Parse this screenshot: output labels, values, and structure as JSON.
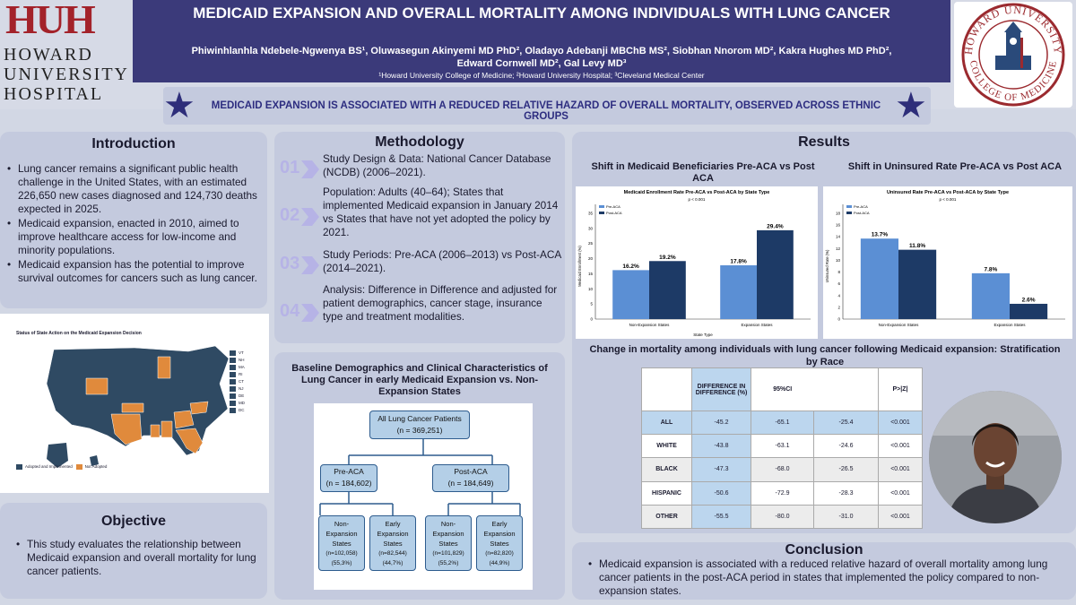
{
  "header": {
    "title": "MEDICAID EXPANSION AND OVERALL MORTALITY AMONG INDIVIDUALS WITH LUNG CANCER",
    "authors_line1": "Phiwinhlanhla Ndebele-Ngwenya BS¹, Oluwasegun Akinyemi MD PhD², Oladayo Adebanji MBChB MS², Siobhan Nnorom MD², Kakra Hughes MD PhD²,",
    "authors_line2": "Edward Cornwell MD², Gal Levy MD³",
    "affiliations": "¹Howard University College of Medicine; ²Howard University Hospital; ³Cleveland Medical Center",
    "logo_left_mark": "HUH",
    "logo_left_text": [
      "HOWARD",
      "UNIVERSITY",
      "HOSPITAL"
    ],
    "seal_text_top": "HOWARD UNIVERSITY",
    "seal_text_bottom": "COLLEGE OF MEDICINE",
    "seal_text_inner": "STUDENT COUNCIL"
  },
  "banner": "MEDICAID EXPANSION IS ASSOCIATED WITH A REDUCED RELATIVE HAZARD OF OVERALL MORTALITY, OBSERVED ACROSS ETHNIC GROUPS",
  "introduction": {
    "heading": "Introduction",
    "bullets": [
      "Lung cancer remains a significant public health challenge in the United States, with an estimated 226,650 new cases diagnosed and 124,730 deaths expected in 2025.",
      "Medicaid expansion, enacted in 2010, aimed to improve healthcare access for low-income and minority populations.",
      "Medicaid expansion has the potential to improve survival outcomes for cancers such as lung cancer."
    ]
  },
  "map": {
    "title": "Status of State Action on the Medicaid Expansion Decision",
    "legend": [
      "Adopted and Implemented",
      "Not Adopted"
    ],
    "small_states": [
      "VT",
      "NH",
      "MA",
      "RI",
      "CT",
      "NJ",
      "DE",
      "MD",
      "DC"
    ],
    "colors": {
      "adopted": "#2f4a63",
      "not_adopted": "#e08a3c"
    }
  },
  "objective": {
    "heading": "Objective",
    "bullets": [
      "This study evaluates the relationship between Medicaid expansion and overall mortality for lung cancer patients."
    ]
  },
  "methodology": {
    "heading": "Methodology",
    "steps": [
      {
        "num": "01",
        "text": "Study Design & Data: National Cancer Database (NCDB) (2006–2021)."
      },
      {
        "num": "02",
        "text": "Population: Adults (40–64); States that implemented Medicaid expansion in January 2014 vs States that have not yet adopted the policy by 2021."
      },
      {
        "num": "03",
        "text": "Study Periods: Pre-ACA (2006–2013) vs Post-ACA (2014–2021)."
      },
      {
        "num": "04",
        "text": "Analysis: Difference in Difference and adjusted for patient demographics, cancer stage, insurance type and treatment modalities."
      }
    ]
  },
  "baseline": {
    "title": "Baseline Demographics and Clinical Characteristics of Lung Cancer in early Medicaid Expansion vs. Non-Expansion States",
    "root": [
      "All Lung Cancer Patients",
      "(n = 369,251)"
    ],
    "pre": [
      "Pre-ACA",
      "(n = 184,602)"
    ],
    "post": [
      "Post-ACA",
      "(n = 184,649)"
    ],
    "leaves": [
      {
        "l1": "Non-",
        "l2": "Expansion",
        "l3": "States",
        "n": "(n=102,058)",
        "pct": "(55,3%)"
      },
      {
        "l1": "Early",
        "l2": "Expansion",
        "l3": "States",
        "n": "(n=82,544)",
        "pct": "(44,7%)"
      },
      {
        "l1": "Non-",
        "l2": "Expansion",
        "l3": "States",
        "n": "(n=101,829)",
        "pct": "(55,2%)"
      },
      {
        "l1": "Early",
        "l2": "Expansion",
        "l3": "States",
        "n": "(n=82,820)",
        "pct": "(44,9%)"
      }
    ]
  },
  "results": {
    "heading": "Results",
    "left_subtitle": "Shift in Medicaid Beneficiaries Pre-ACA vs Post ACA",
    "right_subtitle": "Shift in Uninsured Rate Pre-ACA vs Post ACA",
    "table_title": "Change in mortality among individuals with lung cancer following Medicaid expansion: Stratification by Race"
  },
  "chart_data": [
    {
      "type": "bar",
      "title": "Medicaid Enrollment Rate Pre-ACA vs Post-ACA by State Type",
      "subtitle": "p < 0.001",
      "xlabel": "State Type",
      "ylabel": "Medicaid Enrollment (%)",
      "categories": [
        "Non-Expansion States",
        "Expansion States"
      ],
      "series": [
        {
          "name": "Pre-ACA",
          "values": [
            16.2,
            17.8
          ],
          "labels": [
            "16.2%",
            "17.8%"
          ]
        },
        {
          "name": "Post-ACA",
          "values": [
            19.2,
            29.4
          ],
          "labels": [
            "19.2%",
            "29.4%"
          ]
        }
      ],
      "ylim": [
        0,
        35
      ],
      "yticks": [
        0,
        5,
        10,
        15,
        20,
        25,
        30,
        35
      ],
      "legend": "top-left",
      "colors": [
        "#5b8fd4",
        "#1d3a66"
      ]
    },
    {
      "type": "bar",
      "title": "Uninsured Rate Pre-ACA vs Post-ACA by State Type",
      "subtitle": "p < 0.001",
      "xlabel": "",
      "ylabel": "Uninsured Rate (%)",
      "categories": [
        "Non-Expansion States",
        "Expansion States"
      ],
      "series": [
        {
          "name": "Pre-ACA",
          "values": [
            13.7,
            7.8
          ],
          "labels": [
            "13.7%",
            "7.8%"
          ]
        },
        {
          "name": "Post-ACA",
          "values": [
            11.8,
            2.6
          ],
          "labels": [
            "11.8%",
            "2.6%"
          ]
        }
      ],
      "ylim": [
        0,
        18
      ],
      "yticks": [
        0,
        2,
        4,
        6,
        8,
        10,
        12,
        14,
        16,
        18
      ],
      "legend": "top-left",
      "colors": [
        "#5b8fd4",
        "#1d3a66"
      ]
    }
  ],
  "mortality_table": {
    "headers": [
      "",
      "DIFFERENCE IN DIFFERENCE (%)",
      "95%CI",
      "",
      "P>|Z|"
    ],
    "rows": [
      [
        "ALL",
        "-45.2",
        "-65.1",
        "-25.4",
        "<0.001"
      ],
      [
        "WHITE",
        "-43.8",
        "-63.1",
        "-24.6",
        "<0.001"
      ],
      [
        "BLACK",
        "-47.3",
        "-68.0",
        "-26.5",
        "<0.001"
      ],
      [
        "HISPANIC",
        "-50.6",
        "-72.9",
        "-28.3",
        "<0.001"
      ],
      [
        "OTHER",
        "-55.5",
        "-80.0",
        "-31.0",
        "<0.001"
      ]
    ]
  },
  "conclusion": {
    "heading": "Conclusion",
    "bullets": [
      "Medicaid expansion is associated with a reduced relative hazard of overall mortality among lung cancer patients in the post-ACA period in states that implemented the policy compared to non-expansion states."
    ]
  }
}
